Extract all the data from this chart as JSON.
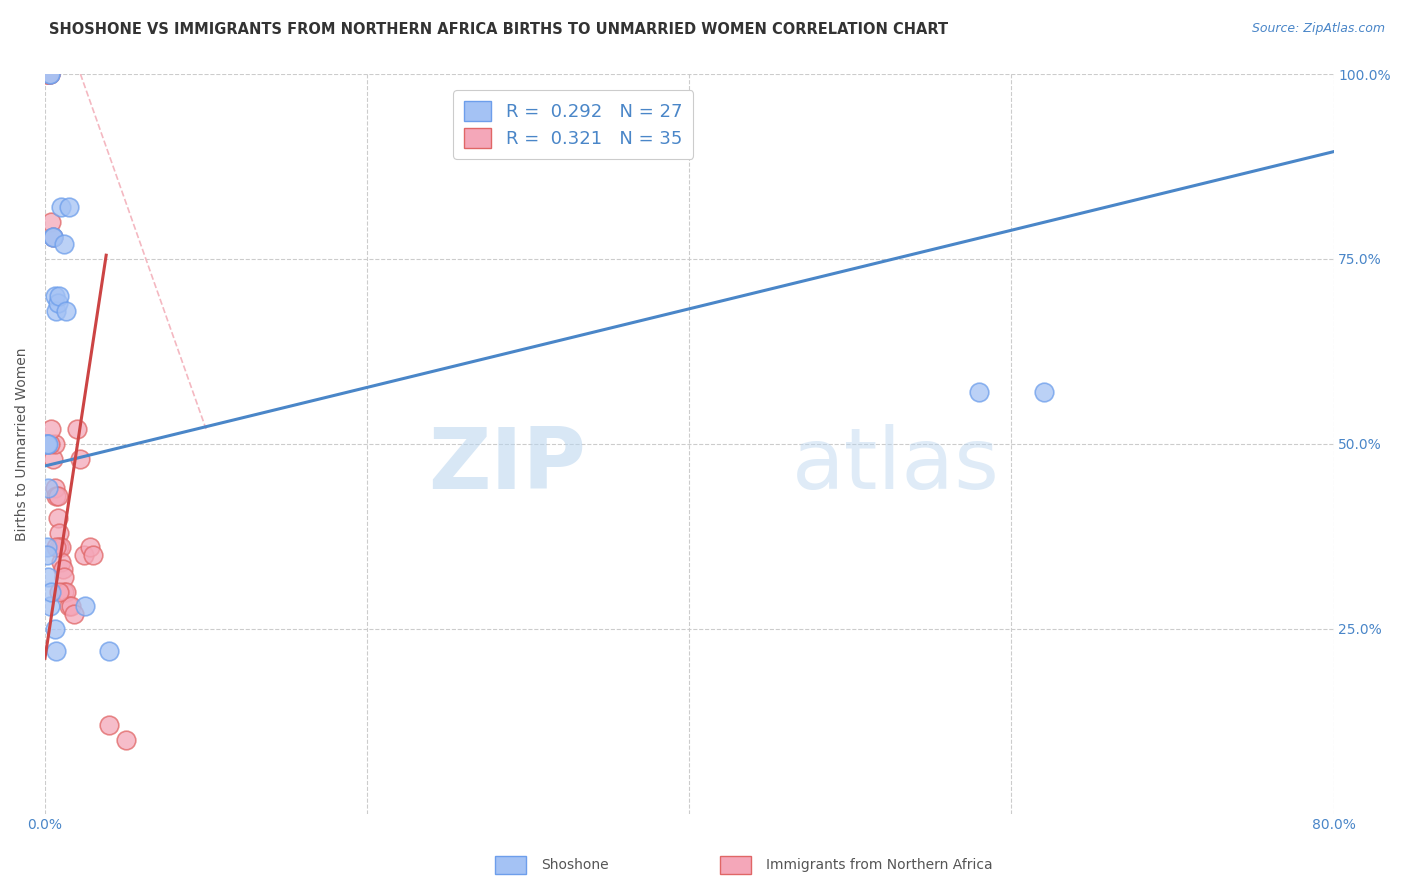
{
  "title": "SHOSHONE VS IMMIGRANTS FROM NORTHERN AFRICA BIRTHS TO UNMARRIED WOMEN CORRELATION CHART",
  "source_text": "Source: ZipAtlas.com",
  "ylabel": "Births to Unmarried Women",
  "xlim": [
    0.0,
    0.8
  ],
  "ylim": [
    0.0,
    1.0
  ],
  "xtick_labels": [
    "0.0%",
    "",
    "",
    "",
    "80.0%"
  ],
  "xtick_vals": [
    0.0,
    0.2,
    0.4,
    0.6,
    0.8
  ],
  "ytick_labels": [
    "25.0%",
    "50.0%",
    "75.0%",
    "100.0%"
  ],
  "ytick_vals": [
    0.25,
    0.5,
    0.75,
    1.0
  ],
  "legend_bottom_labels": [
    "Shoshone",
    "Immigrants from Northern Africa"
  ],
  "watermark_zip": "ZIP",
  "watermark_atlas": "atlas",
  "blue_color": "#a4c2f4",
  "pink_color": "#f4a7b9",
  "blue_edge_color": "#6d9eeb",
  "pink_edge_color": "#e06666",
  "blue_line_color": "#4a86c8",
  "pink_line_color": "#cc4444",
  "ref_line_color": "#f4b8c1",
  "R_blue": 0.292,
  "N_blue": 27,
  "R_pink": 0.321,
  "N_pink": 35,
  "legend_R_N_color": "#4a86c8",
  "blue_line_x0": 0.0,
  "blue_line_y0": 0.47,
  "blue_line_x1": 0.8,
  "blue_line_y1": 0.895,
  "pink_line_x0": 0.0,
  "pink_line_y0": 0.21,
  "pink_line_x1": 0.038,
  "pink_line_y1": 0.755,
  "ref_line_x0": 0.022,
  "ref_line_y0": 1.0,
  "ref_line_x1": 0.1,
  "ref_line_y1": 0.52,
  "shoshone_x": [
    0.003,
    0.003,
    0.005,
    0.005,
    0.006,
    0.007,
    0.008,
    0.009,
    0.01,
    0.012,
    0.013,
    0.015,
    0.001,
    0.001,
    0.001,
    0.001,
    0.002,
    0.002,
    0.002,
    0.003,
    0.004,
    0.006,
    0.007,
    0.025,
    0.04,
    0.58,
    0.62
  ],
  "shoshone_y": [
    1.0,
    1.0,
    0.78,
    0.78,
    0.7,
    0.68,
    0.69,
    0.7,
    0.82,
    0.77,
    0.68,
    0.82,
    0.5,
    0.5,
    0.36,
    0.35,
    0.32,
    0.5,
    0.44,
    0.28,
    0.3,
    0.25,
    0.22,
    0.28,
    0.22,
    0.57,
    0.57
  ],
  "northafrica_x": [
    0.001,
    0.002,
    0.002,
    0.003,
    0.003,
    0.004,
    0.005,
    0.005,
    0.006,
    0.006,
    0.007,
    0.008,
    0.008,
    0.009,
    0.009,
    0.01,
    0.01,
    0.011,
    0.012,
    0.012,
    0.013,
    0.015,
    0.016,
    0.018,
    0.02,
    0.022,
    0.024,
    0.028,
    0.03,
    0.04,
    0.05,
    0.003,
    0.004,
    0.007,
    0.009
  ],
  "northafrica_y": [
    1.0,
    1.0,
    1.0,
    1.0,
    1.0,
    0.8,
    0.78,
    0.48,
    0.5,
    0.44,
    0.43,
    0.43,
    0.4,
    0.38,
    0.36,
    0.36,
    0.34,
    0.33,
    0.32,
    0.3,
    0.3,
    0.28,
    0.28,
    0.27,
    0.52,
    0.48,
    0.35,
    0.36,
    0.35,
    0.12,
    0.1,
    0.5,
    0.52,
    0.36,
    0.3
  ]
}
